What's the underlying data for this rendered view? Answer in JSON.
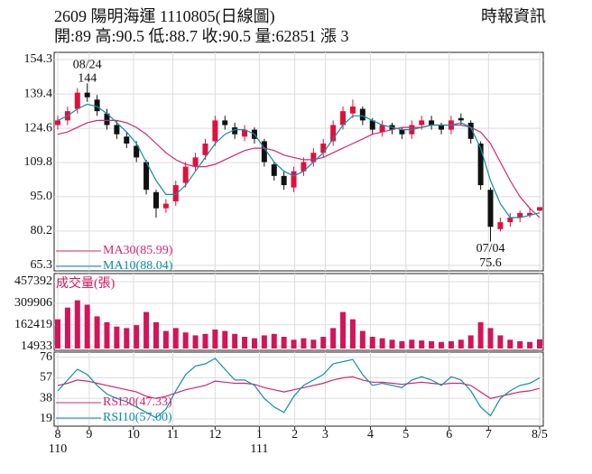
{
  "header": {
    "title": "2609 陽明海運 1110805(日線圖)",
    "subtitle": "開:89 高:90.5 低:88.7 收:90.5 量:62851 漲 3",
    "source": "時報資訊"
  },
  "chart_data": [
    {
      "type": "candlestick",
      "x": [
        0,
        1,
        2,
        3,
        4,
        5,
        6,
        7,
        8,
        9,
        10,
        11,
        12,
        13,
        14,
        15,
        16,
        17,
        18,
        19,
        20,
        21,
        22,
        23,
        24,
        25,
        26,
        27,
        28,
        29,
        30,
        31,
        32,
        33,
        34,
        35,
        36,
        37,
        38,
        39,
        40,
        41,
        42,
        43,
        44,
        45,
        46,
        47,
        48,
        49
      ],
      "open": [
        126,
        128,
        133,
        140,
        137,
        131,
        126,
        121,
        117,
        110,
        97,
        90,
        93,
        101,
        108,
        113,
        119,
        128,
        125,
        121,
        124,
        119,
        109,
        104,
        99,
        106,
        110,
        114,
        119,
        126,
        131,
        133,
        128,
        123,
        126,
        124,
        122,
        126,
        128,
        126,
        124,
        129,
        127,
        118,
        98,
        81,
        84,
        86,
        87,
        89
      ],
      "high": [
        130,
        134,
        142,
        144,
        139,
        133,
        128,
        123,
        119,
        111,
        98,
        94,
        102,
        110,
        114,
        120,
        130,
        130,
        127,
        126,
        125,
        120,
        110,
        106,
        108,
        112,
        116,
        120,
        128,
        134,
        137,
        134,
        129,
        128,
        127,
        125,
        128,
        130,
        130,
        127,
        130,
        131,
        128,
        119,
        99,
        86,
        88,
        89,
        90,
        90.5
      ],
      "low": [
        124,
        126,
        131,
        136,
        130,
        124,
        120,
        116,
        110,
        96,
        86,
        88,
        91,
        99,
        106,
        111,
        117,
        124,
        120,
        119,
        118,
        108,
        102,
        98,
        97,
        104,
        108,
        112,
        117,
        124,
        129,
        126,
        122,
        121,
        122,
        120,
        120,
        124,
        124,
        122,
        122,
        126,
        118,
        98,
        75.6,
        80,
        82,
        84,
        86,
        88.7
      ],
      "close": [
        128,
        132,
        140,
        138,
        132,
        126,
        122,
        118,
        112,
        98,
        90,
        92,
        100,
        108,
        112,
        118,
        128,
        126,
        122,
        124,
        120,
        110,
        104,
        100,
        106,
        110,
        114,
        118,
        126,
        132,
        134,
        128,
        124,
        126,
        124,
        122,
        126,
        128,
        126,
        124,
        128,
        128,
        120,
        100,
        82,
        84,
        86,
        88,
        88,
        90.5
      ],
      "up_color": "#e0103c",
      "down_color": "#111111",
      "series": [
        {
          "name": "MA30(85.99)",
          "color": "#d6246e",
          "values": [
            122,
            123,
            125,
            127,
            128,
            128,
            128,
            127,
            125,
            122,
            118,
            114,
            111,
            109,
            108,
            108,
            109,
            111,
            113,
            115,
            116,
            116,
            115,
            113,
            112,
            111,
            111,
            112,
            114,
            116,
            118,
            120,
            122,
            123,
            124,
            125,
            125,
            125,
            126,
            126,
            126,
            126,
            125,
            123,
            118,
            110,
            102,
            95,
            90,
            85.99
          ]
        },
        {
          "name": "MA10(88.04)",
          "color": "#0f8fa8",
          "values": [
            128,
            130,
            133,
            135,
            134,
            131,
            127,
            123,
            118,
            110,
            102,
            96,
            96,
            100,
            106,
            112,
            118,
            122,
            124,
            124,
            122,
            116,
            110,
            106,
            104,
            106,
            110,
            114,
            120,
            126,
            130,
            130,
            128,
            126,
            125,
            124,
            124,
            125,
            126,
            126,
            126,
            127,
            125,
            116,
            102,
            92,
            86,
            86,
            87,
            88.04
          ]
        }
      ],
      "ylim": [
        65.3,
        154.3
      ],
      "yticks": [
        154.3,
        139.4,
        124.6,
        109.8,
        {
          "value": 95,
          "label": "95.0"
        },
        80.2,
        65.3
      ],
      "grid": true,
      "annotations": [
        {
          "x": 3,
          "y": 144,
          "date": "08/24",
          "label": "144",
          "position": "above"
        },
        {
          "x": 44,
          "y": 75.6,
          "date": "07/04",
          "label": "75.6",
          "position": "below"
        }
      ]
    },
    {
      "type": "bar",
      "title": "成交量(張)",
      "color": "#d4145a",
      "values": [
        200000,
        280000,
        330000,
        300000,
        220000,
        180000,
        150000,
        140000,
        160000,
        250000,
        180000,
        120000,
        140000,
        110000,
        90000,
        100000,
        130000,
        120000,
        100000,
        80000,
        70000,
        90000,
        100000,
        80000,
        60000,
        70000,
        60000,
        80000,
        140000,
        250000,
        200000,
        120000,
        80000,
        70000,
        60000,
        50000,
        60000,
        55000,
        50000,
        45000,
        50000,
        60000,
        90000,
        180000,
        140000,
        90000,
        60000,
        50000,
        45000,
        62851
      ],
      "ylim": [
        0,
        457392
      ],
      "yticks": [
        457392,
        309906,
        162419,
        14933
      ],
      "grid": true
    },
    {
      "type": "line",
      "series": [
        {
          "name": "RSI30(47.33)",
          "color": "#d6246e",
          "values": [
            50,
            52,
            55,
            54,
            52,
            50,
            48,
            46,
            44,
            40,
            38,
            40,
            43,
            46,
            48,
            50,
            54,
            53,
            52,
            52,
            51,
            48,
            46,
            44,
            46,
            48,
            50,
            52,
            55,
            57,
            58,
            55,
            53,
            53,
            52,
            51,
            52,
            53,
            52,
            51,
            52,
            52,
            50,
            44,
            38,
            40,
            42,
            44,
            45,
            47.33
          ]
        },
        {
          "name": "RSI10(57.00)",
          "color": "#0f8fa8",
          "values": [
            45,
            55,
            65,
            60,
            50,
            42,
            38,
            35,
            30,
            25,
            20,
            28,
            45,
            60,
            68,
            70,
            75,
            65,
            55,
            55,
            50,
            38,
            30,
            25,
            40,
            50,
            55,
            60,
            70,
            72,
            74,
            60,
            50,
            52,
            50,
            48,
            55,
            58,
            55,
            50,
            58,
            55,
            45,
            30,
            22,
            38,
            45,
            50,
            52,
            57
          ]
        }
      ],
      "ylim": [
        14,
        80
      ],
      "yticks": [
        76,
        57,
        38,
        19
      ],
      "grid": true,
      "xticks": [
        {
          "value": 0,
          "label": "8"
        },
        {
          "value": 3.2,
          "label": "9"
        },
        {
          "value": 7.7,
          "label": "10"
        },
        {
          "value": 11.7,
          "label": "11"
        },
        {
          "value": 16,
          "label": "12"
        },
        {
          "value": 20.5,
          "label": "1"
        },
        {
          "value": 24.1,
          "label": "2"
        },
        {
          "value": 27.2,
          "label": "3"
        },
        {
          "value": 31.8,
          "label": "4"
        },
        {
          "value": 35.4,
          "label": "5"
        },
        {
          "value": 39.8,
          "label": "6"
        },
        {
          "value": 43.8,
          "label": "7"
        },
        {
          "value": 49,
          "label": "8/5"
        }
      ],
      "year_labels": [
        {
          "value": 0,
          "label": "110"
        },
        {
          "value": 20.5,
          "label": "111"
        }
      ]
    }
  ]
}
